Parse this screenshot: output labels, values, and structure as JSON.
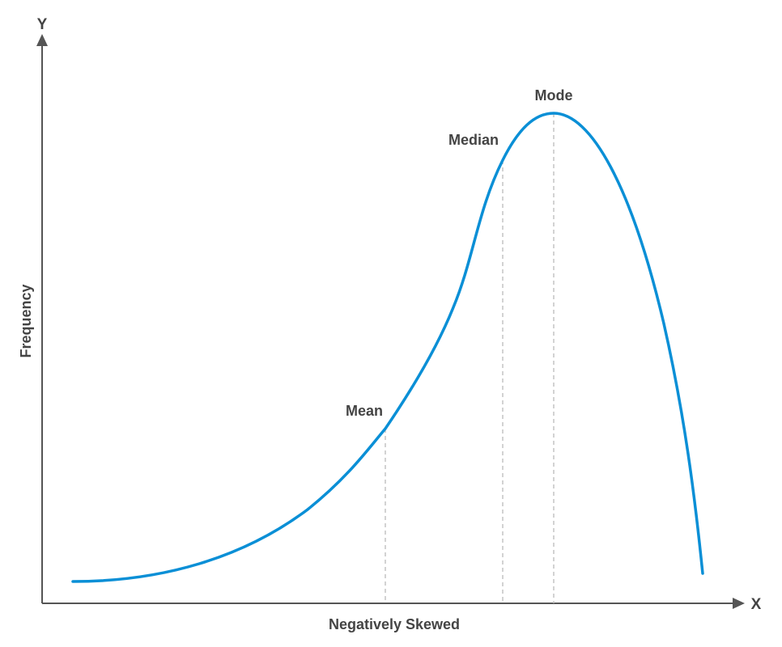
{
  "chart_data": {
    "type": "line",
    "xaxis_label": "X",
    "yaxis_label": "Y",
    "ylabel": "Frequency",
    "caption": "Negatively Skewed",
    "curve_color": "#0a8fd6",
    "axis_color": "#555555",
    "guide_color": "#bbbbbb",
    "markers": [
      {
        "name": "Mean",
        "label": "Mean"
      },
      {
        "name": "Median",
        "label": "Median"
      },
      {
        "name": "Mode",
        "label": "Mode"
      }
    ]
  }
}
